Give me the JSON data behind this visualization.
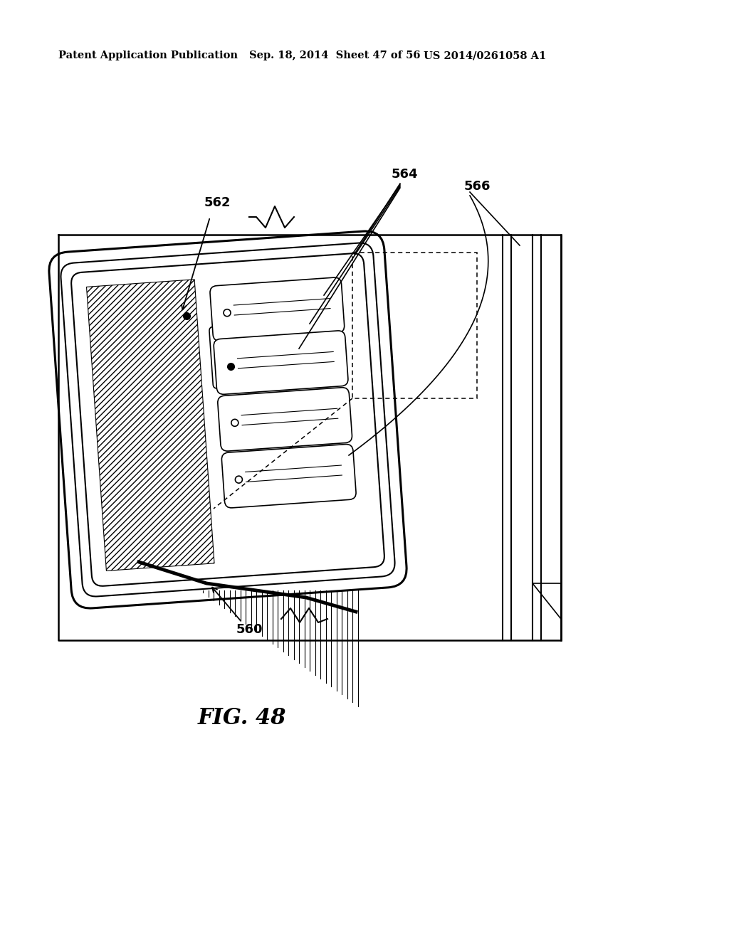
{
  "bg_color": "#ffffff",
  "header_left": "Patent Application Publication",
  "header_mid": "Sep. 18, 2014  Sheet 47 of 56",
  "header_right": "US 2014/0261058 A1",
  "figure_label": "FIG. 48",
  "lw": 1.5,
  "line_color": "#000000"
}
